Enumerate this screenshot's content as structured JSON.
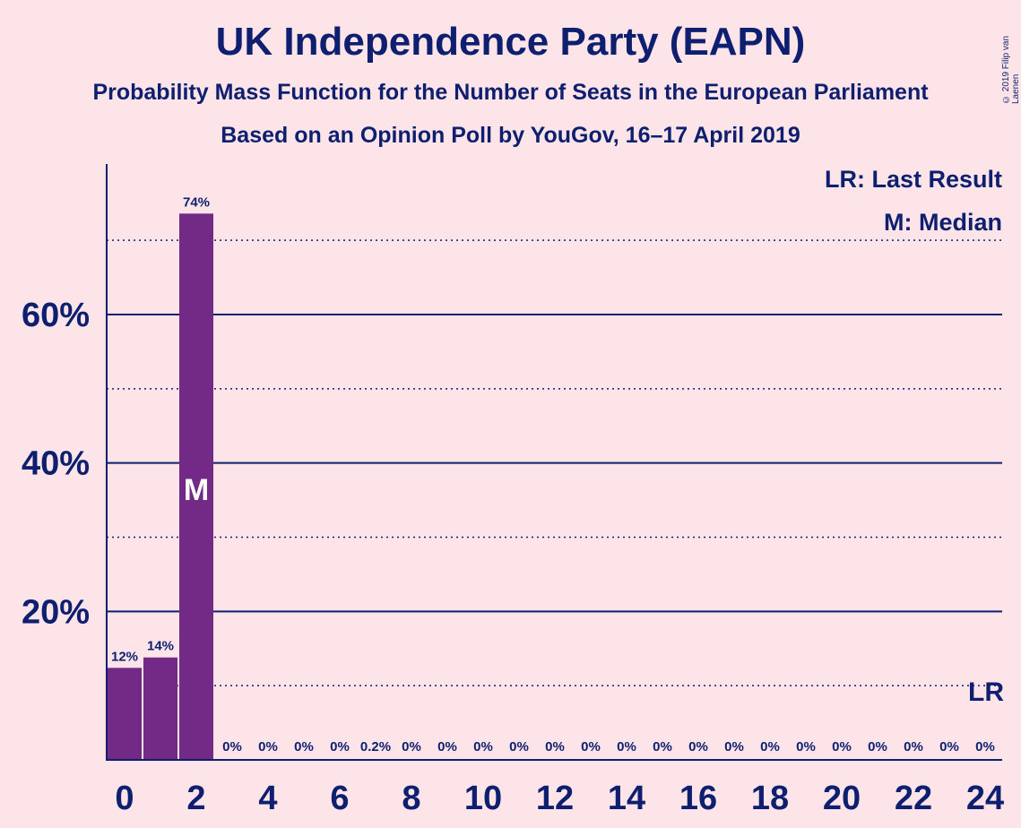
{
  "title": "UK Independence Party (EAPN)",
  "subtitle1": "Probability Mass Function for the Number of Seats in the European Parliament",
  "subtitle2": "Based on an Opinion Poll by YouGov, 16–17 April 2019",
  "copyright": "© 2019 Filip van Laenen",
  "legend": {
    "last_result": "LR: Last Result",
    "median": "M: Median"
  },
  "colors": {
    "background": "#fde4e8",
    "bar": "#722a86",
    "text": "#0d1f6e"
  },
  "chart_data": {
    "type": "bar",
    "x": [
      0,
      1,
      2,
      3,
      4,
      5,
      6,
      7,
      8,
      9,
      10,
      11,
      12,
      13,
      14,
      15,
      16,
      17,
      18,
      19,
      20,
      21,
      22,
      23,
      24
    ],
    "values": [
      12.4,
      13.8,
      73.6,
      0,
      0,
      0,
      0,
      0.2,
      0,
      0,
      0,
      0,
      0,
      0,
      0,
      0,
      0,
      0,
      0,
      0,
      0,
      0,
      0,
      0,
      0
    ],
    "value_labels": [
      "12%",
      "14%",
      "74%",
      "0%",
      "0%",
      "0%",
      "0%",
      "0.2%",
      "0%",
      "0%",
      "0%",
      "0%",
      "0%",
      "0%",
      "0%",
      "0%",
      "0%",
      "0%",
      "0%",
      "0%",
      "0%",
      "0%",
      "0%",
      "0%",
      "0%"
    ],
    "x_tick_labels": [
      "0",
      "2",
      "4",
      "6",
      "8",
      "10",
      "12",
      "14",
      "16",
      "18",
      "20",
      "22",
      "24"
    ],
    "y_tick_labels": [
      "20%",
      "40%",
      "60%"
    ],
    "ylim": [
      0,
      80
    ],
    "median_seat": 2,
    "median_marker": "M",
    "last_result_seat": 24,
    "last_result_marker": "LR",
    "grid": "solid every 20%, dotted every 10%",
    "legend_position": "top-right"
  }
}
